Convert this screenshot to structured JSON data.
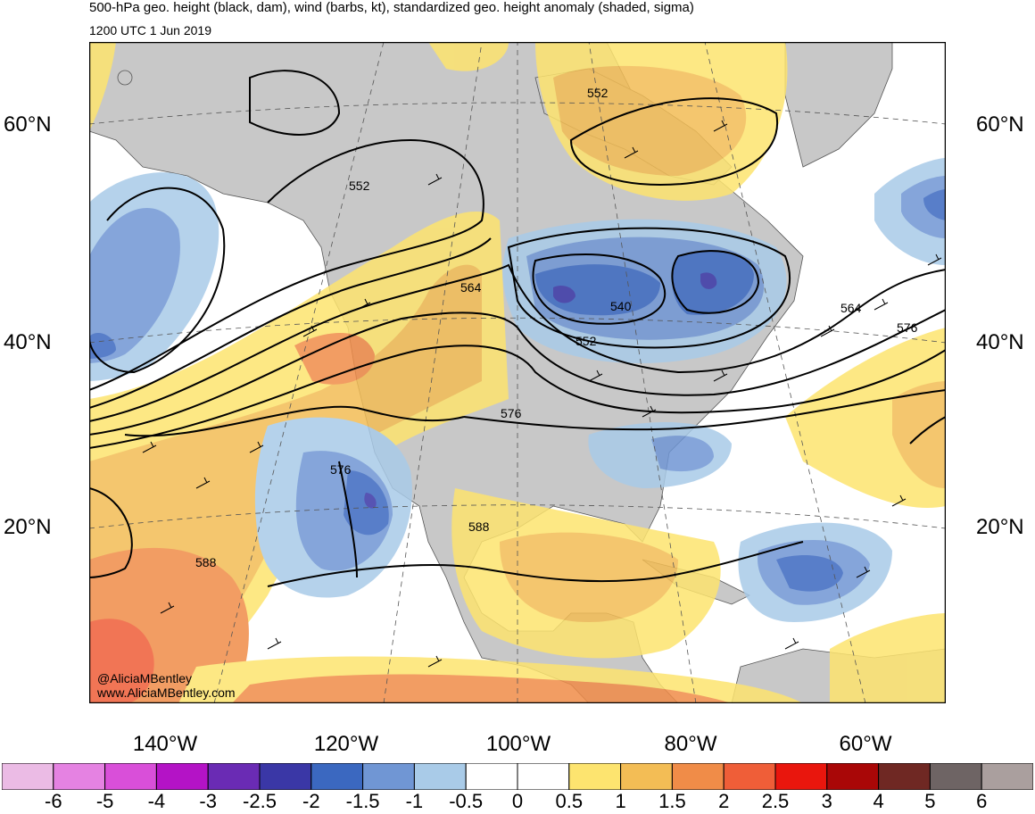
{
  "header": {
    "title": "500-hPa geo. height (black, dam), wind (barbs, kt), standardized geo. height anomaly (shaded, sigma)",
    "valid_time": "1200 UTC 1 Jun 2019"
  },
  "map": {
    "latitude_labels_left": [
      "60°N",
      "40°N",
      "20°N"
    ],
    "latitude_labels_right": [
      "60°N",
      "40°N",
      "20°N"
    ],
    "longitude_labels": [
      "140°W",
      "120°W",
      "100°W",
      "80°W",
      "60°W"
    ],
    "contour_labels": [
      "552",
      "552",
      "564",
      "540",
      "552",
      "564",
      "576",
      "576",
      "576",
      "588",
      "588"
    ],
    "credit_handle": "@AliciaMBentley",
    "credit_url": "www.AliciaMBentley.com",
    "colors": {
      "land": "#c8c8c8",
      "ocean": "#ffffff",
      "contour": "#000000"
    }
  },
  "colorbar": {
    "labels": [
      "-6",
      "-5",
      "-4",
      "-3",
      "-2.5",
      "-2",
      "-1.5",
      "-1",
      "-0.5",
      "0",
      "0.5",
      "1",
      "1.5",
      "2",
      "2.5",
      "3",
      "4",
      "5",
      "6"
    ],
    "colors": [
      "#ebbbe5",
      "#e582e2",
      "#d94fd9",
      "#b413c6",
      "#6a2bb4",
      "#3a37a6",
      "#3b68c0",
      "#7096d4",
      "#a9cbe8",
      "#ffffff",
      "#ffffff",
      "#fde46f",
      "#f3bd55",
      "#f08c48",
      "#ef5e38",
      "#e9160d",
      "#a90707",
      "#6f2823",
      "#6e6464",
      "#aa9f9e"
    ]
  }
}
